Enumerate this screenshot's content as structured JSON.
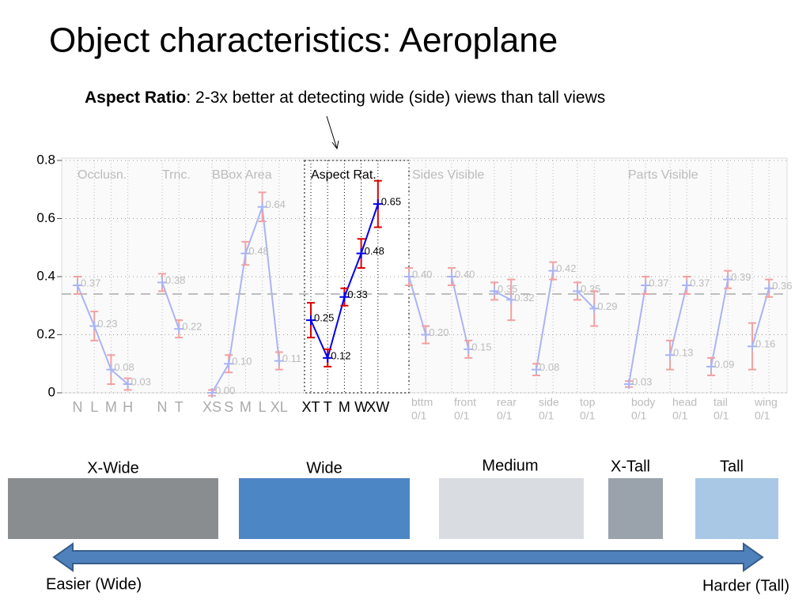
{
  "slide": {
    "title": "Object characteristics: Aeroplane",
    "subtitle_bold": "Aspect Ratio",
    "subtitle": ": 2-3x better at detecting wide (side) views than tall views",
    "images": [
      "X-Wide",
      "Wide",
      "Medium",
      "X-Tall",
      "Tall"
    ],
    "arrow_left": "Easier (Wide)",
    "arrow_right": "Harder (Tall)"
  },
  "chart_data": {
    "type": "line",
    "ylim": [
      0,
      0.8
    ],
    "yticks": [
      0,
      0.2,
      0.4,
      0.6,
      0.8
    ],
    "grid": true,
    "reference_line": 0.34,
    "highlight": "Aspect Rat.",
    "color": "#0000ee",
    "error_color": "#dd0000",
    "faded_color": "#aab4f4",
    "faded_error_color": "#f2a0a0",
    "groups": [
      {
        "name": "Occlusn.",
        "categories": [
          "N",
          "L",
          "M",
          "H"
        ],
        "values": [
          0.37,
          0.23,
          0.08,
          0.03
        ],
        "value_labels": [
          "0.37",
          "0.23",
          "0.08",
          "0.03"
        ],
        "errors": [
          0.03,
          0.05,
          0.05,
          0.02
        ]
      },
      {
        "name": "Trnc.",
        "categories": [
          "N",
          "T"
        ],
        "values": [
          0.38,
          0.22
        ],
        "value_labels": [
          "0.38",
          "0.22"
        ],
        "errors": [
          0.03,
          0.03
        ]
      },
      {
        "name": "BBox Area",
        "categories": [
          "XS",
          "S",
          "M",
          "L",
          "XL"
        ],
        "values": [
          0.0,
          0.1,
          0.48,
          0.64,
          0.11
        ],
        "value_labels": [
          "0.00",
          "0.10",
          "0.48",
          "0.64",
          "0.11"
        ],
        "errors": [
          0.01,
          0.03,
          0.04,
          0.05,
          0.03
        ]
      },
      {
        "name": "Aspect Rat.",
        "categories": [
          "XT",
          "T",
          "M",
          "W",
          "XW"
        ],
        "values": [
          0.25,
          0.12,
          0.33,
          0.48,
          0.65
        ],
        "value_labels": [
          "0.25",
          "0.12",
          "0.33",
          "0.48",
          "0.65"
        ],
        "errors": [
          0.06,
          0.03,
          0.03,
          0.05,
          0.08
        ]
      },
      {
        "name": "Sides Visible",
        "pairs": [
          {
            "label": "bttm",
            "sublabel": "0/1",
            "values": [
              0.4,
              0.2
            ],
            "value_labels": [
              "0.40",
              "0.20"
            ],
            "errors": [
              0.03,
              0.03
            ]
          },
          {
            "label": "front",
            "sublabel": "0/1",
            "values": [
              0.4,
              0.15
            ],
            "value_labels": [
              "0.40",
              "0.15"
            ],
            "errors": [
              0.03,
              0.03
            ]
          },
          {
            "label": "rear",
            "sublabel": "0/1",
            "values": [
              0.35,
              0.32
            ],
            "value_labels": [
              "0.35",
              "0.32"
            ],
            "errors": [
              0.03,
              0.07
            ]
          },
          {
            "label": "side",
            "sublabel": "0/1",
            "values": [
              0.08,
              0.42
            ],
            "value_labels": [
              "0.08",
              "0.42"
            ],
            "errors": [
              0.02,
              0.03
            ]
          },
          {
            "label": "top",
            "sublabel": "0/1",
            "values": [
              0.35,
              0.29
            ],
            "value_labels": [
              "0.35",
              "0.29"
            ],
            "errors": [
              0.03,
              0.06
            ]
          }
        ]
      },
      {
        "name": "Parts Visible",
        "pairs": [
          {
            "label": "body",
            "sublabel": "0/1",
            "values": [
              0.03,
              0.37
            ],
            "value_labels": [
              "0.03",
              "0.37"
            ],
            "errors": [
              0.01,
              0.03
            ]
          },
          {
            "label": "head",
            "sublabel": "0/1",
            "values": [
              0.13,
              0.37
            ],
            "value_labels": [
              "0.13",
              "0.37"
            ],
            "errors": [
              0.05,
              0.03
            ]
          },
          {
            "label": "tail",
            "sublabel": "0/1",
            "values": [
              0.09,
              0.39
            ],
            "value_labels": [
              "0.09",
              "0.39"
            ],
            "errors": [
              0.03,
              0.03
            ]
          },
          {
            "label": "wing",
            "sublabel": "0/1",
            "values": [
              0.16,
              0.36
            ],
            "value_labels": [
              "0.16",
              "0.36"
            ],
            "errors": [
              0.08,
              0.03
            ]
          }
        ]
      }
    ]
  }
}
